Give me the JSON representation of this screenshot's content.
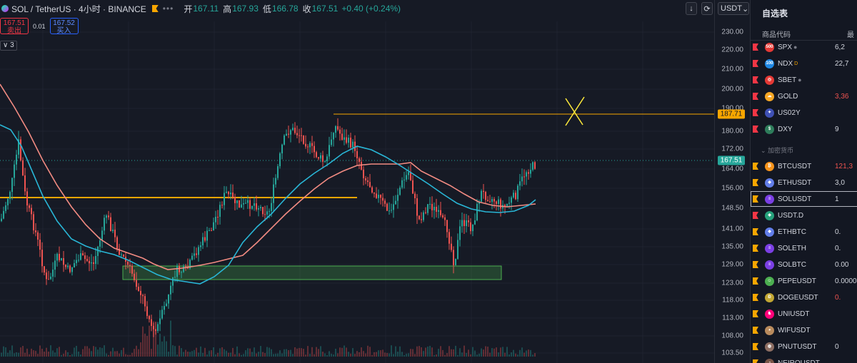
{
  "header": {
    "symbol": "SOL / TetherUS · 4小时 · BINANCE",
    "dots": "•••",
    "open_label": "开",
    "open": "167.11",
    "high_label": "高",
    "high": "167.93",
    "low_label": "低",
    "low": "166.78",
    "close_label": "收",
    "close": "167.51",
    "change": "+0.40 (+0.24%)"
  },
  "trade": {
    "sell_price": "167.51",
    "sell_label": "卖出",
    "spread": "0.01",
    "buy_price": "167.52",
    "buy_label": "买入"
  },
  "indicator_badge": "∨ 3",
  "controls": {
    "down_icon": "↓",
    "replay_icon": "⟳",
    "currency": "USDT",
    "chevron": "⌄"
  },
  "price_axis": {
    "levels": [
      "230.00",
      "220.00",
      "210.00",
      "200.00",
      "190.00",
      "180.00",
      "172.00",
      "164.00",
      "156.00",
      "148.50",
      "141.00",
      "135.00",
      "129.00",
      "123.00",
      "118.00",
      "113.00",
      "108.00",
      "103.50"
    ],
    "resistance_tag": "187.71",
    "current_tag": "167.51"
  },
  "colors": {
    "up": "#26a69a",
    "down": "#ef5350",
    "ma_fast": "#29b6d6",
    "ma_slow": "#f28b82",
    "orange": "#f7a600",
    "zone": "#4caf50"
  },
  "sidebar": {
    "title": "自选表",
    "col_symbol": "商品代码",
    "col_price": "最",
    "section_crypto": "加密货币",
    "items": [
      {
        "sym": "SPX",
        "price": "6,2",
        "icon": "500",
        "icon_color": "#e53935",
        "flag": "#f23645",
        "dot": "●",
        "sup": "",
        "price_color": "#d1d4dc"
      },
      {
        "sym": "NDX",
        "price": "22,7",
        "icon": "100",
        "icon_color": "#1e88e5",
        "flag": "#f23645",
        "dot": "",
        "sup": "D",
        "price_color": "#d1d4dc"
      },
      {
        "sym": "SBET",
        "price": "",
        "icon": "◎",
        "icon_color": "#e53935",
        "flag": "#f23645",
        "dot": "●",
        "sup": "",
        "price_color": "#d1d4dc"
      },
      {
        "sym": "GOLD",
        "price": "3,36",
        "icon": "☁",
        "icon_color": "#f9a825",
        "flag": "#f23645",
        "dot": "",
        "sup": "",
        "price_color": "#ef5350"
      },
      {
        "sym": "US02Y",
        "price": "",
        "icon": "✦",
        "icon_color": "#3f51b5",
        "flag": "#f23645",
        "dot": "",
        "sup": "",
        "price_color": "#d1d4dc"
      },
      {
        "sym": "DXY",
        "price": "9",
        "icon": "$",
        "icon_color": "#2e7d5b",
        "flag": "#f23645",
        "dot": "",
        "sup": "",
        "price_color": "#d1d4dc"
      },
      {
        "sym": "BTCUSDT",
        "price": "121,3",
        "icon": "₿",
        "icon_color": "#f7931a",
        "flag": "#f7a600",
        "dot": "",
        "sup": "",
        "price_color": "#ef5350"
      },
      {
        "sym": "ETHUSDT",
        "price": "3,0",
        "icon": "◆",
        "icon_color": "#627eea",
        "flag": "#f7a600",
        "dot": "",
        "sup": "",
        "price_color": "#d1d4dc"
      },
      {
        "sym": "SOLUSDT",
        "price": "1",
        "icon": "≡",
        "icon_color": "#7b3fe4",
        "flag": "#f7a600",
        "dot": "",
        "sup": "",
        "price_color": "#d1d4dc"
      },
      {
        "sym": "USDT.D",
        "price": "",
        "icon": "◈",
        "icon_color": "#26a17b",
        "flag": "#f23645",
        "dot": "",
        "sup": "",
        "price_color": "#d1d4dc"
      },
      {
        "sym": "ETHBTC",
        "price": "0.",
        "icon": "◆",
        "icon_color": "#627eea",
        "flag": "#f7a600",
        "dot": "",
        "sup": "",
        "price_color": "#d1d4dc"
      },
      {
        "sym": "SOLETH",
        "price": "0.",
        "icon": "≡",
        "icon_color": "#7b3fe4",
        "flag": "#f7a600",
        "dot": "",
        "sup": "",
        "price_color": "#d1d4dc"
      },
      {
        "sym": "SOLBTC",
        "price": "0.00",
        "icon": "≡",
        "icon_color": "#7b3fe4",
        "flag": "#f7a600",
        "dot": "",
        "sup": "",
        "price_color": "#d1d4dc"
      },
      {
        "sym": "PEPEUSDT",
        "price": "0.0000",
        "icon": "☺",
        "icon_color": "#4caf50",
        "flag": "#f7a600",
        "dot": "",
        "sup": "",
        "price_color": "#d1d4dc"
      },
      {
        "sym": "DOGEUSDT",
        "price": "0.",
        "icon": "Ð",
        "icon_color": "#c2a633",
        "flag": "#f7a600",
        "dot": "",
        "sup": "",
        "price_color": "#ef5350"
      },
      {
        "sym": "UNIUSDT",
        "price": "",
        "icon": "♞",
        "icon_color": "#ff007a",
        "flag": "#f7a600",
        "dot": "",
        "sup": "",
        "price_color": "#d1d4dc"
      },
      {
        "sym": "WIFUSDT",
        "price": "",
        "icon": "◕",
        "icon_color": "#b98b5d",
        "flag": "#f7a600",
        "dot": "",
        "sup": "",
        "price_color": "#d1d4dc"
      },
      {
        "sym": "PNUTUSDT",
        "price": "0",
        "icon": "◍",
        "icon_color": "#8d6e63",
        "flag": "#f7a600",
        "dot": "",
        "sup": "",
        "price_color": "#d1d4dc"
      },
      {
        "sym": "NEIROUSDT",
        "price": "",
        "icon": "◔",
        "icon_color": "#795548",
        "flag": "#f7a600",
        "dot": "",
        "sup": "",
        "price_color": "#d1d4dc"
      }
    ]
  }
}
